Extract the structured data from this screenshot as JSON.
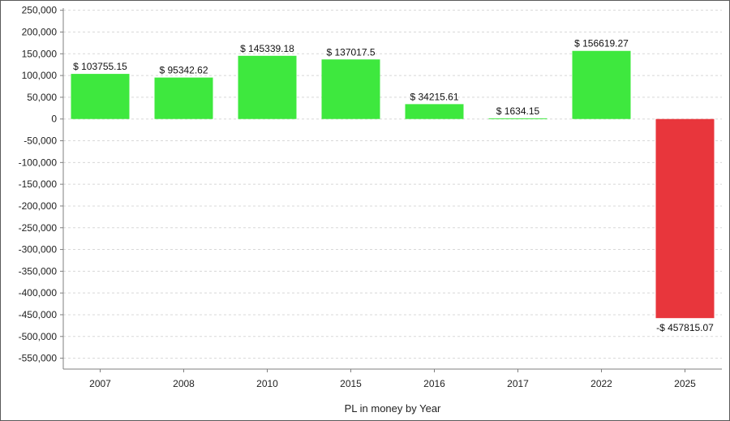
{
  "chart_data": {
    "type": "bar",
    "title": "",
    "xlabel": "PL in money by Year",
    "ylabel": "",
    "categories": [
      "2007",
      "2008",
      "2010",
      "2015",
      "2016",
      "2017",
      "2022",
      "2025"
    ],
    "values": [
      103755.15,
      95342.62,
      145339.18,
      137017.5,
      34215.61,
      1634.15,
      156619.27,
      -457815.07
    ],
    "value_labels": [
      "$ 103755.15",
      "$ 95342.62",
      "$ 145339.18",
      "$ 137017.5",
      "$ 34215.61",
      "$ 1634.15",
      "$ 156619.27",
      "-$ 457815.07"
    ],
    "y_ticks": [
      250000,
      200000,
      150000,
      100000,
      50000,
      0,
      -50000,
      -100000,
      -150000,
      -200000,
      -250000,
      -300000,
      -350000,
      -400000,
      -450000,
      -500000,
      -550000
    ],
    "y_tick_labels": [
      "250,000",
      "200,000",
      "150,000",
      "100,000",
      "50,000",
      "0",
      "-50,000",
      "-100,000",
      "-150,000",
      "-200,000",
      "-250,000",
      "-300,000",
      "-350,000",
      "-400,000",
      "-450,000",
      "-500,000",
      "-550,000"
    ],
    "ylim": [
      -575000,
      255000
    ],
    "grid": true,
    "colors": {
      "positive": "#3ee83e",
      "negative": "#e8363c",
      "grid": "#d8d8d8",
      "axis": "#7f7f7f"
    }
  }
}
